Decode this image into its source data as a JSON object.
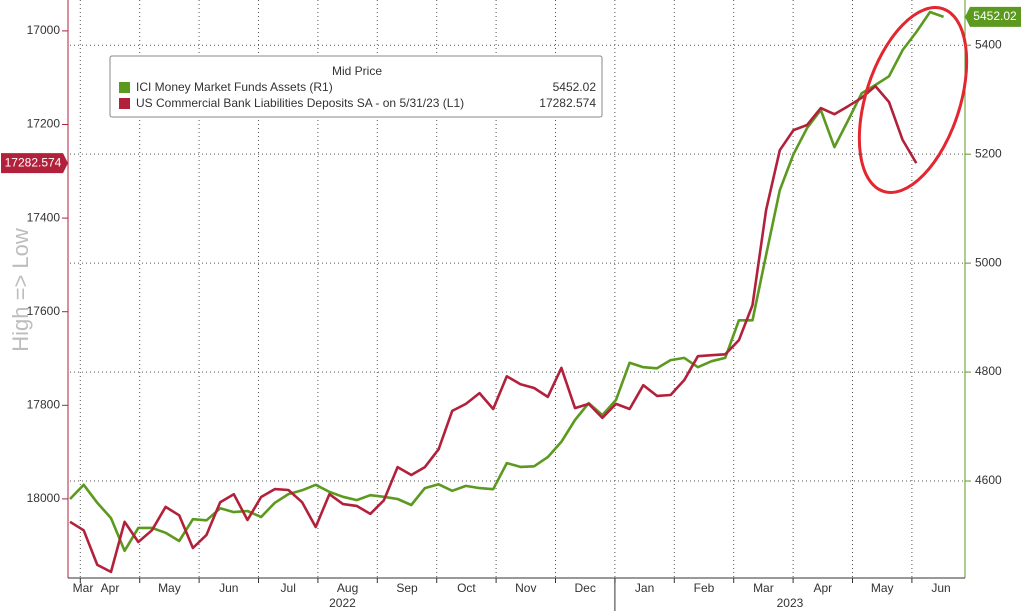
{
  "chart_data": {
    "type": "line",
    "legend_title": "Mid Price",
    "y_axis_label": "High => Low",
    "months": [
      "Mar",
      "Apr",
      "May",
      "Jun",
      "Jul",
      "Aug",
      "Sep",
      "Oct",
      "Nov",
      "Dec",
      "Jan",
      "Feb",
      "Mar",
      "Apr",
      "May",
      "Jun"
    ],
    "years": [
      "2022",
      "2023"
    ],
    "ylim": [
      18169,
      16934
    ],
    "yticks": [
      17000,
      17200,
      17400,
      17600,
      17800,
      18000
    ],
    "y2lim": [
      4422,
      5483
    ],
    "y2ticks": [
      4600,
      4800,
      5000,
      5200,
      5400
    ],
    "grid": true,
    "series": [
      {
        "name": "ICI Money Market Funds Assets  (R1)",
        "color": "#5b9a1f",
        "axis": "y2",
        "values": [
          4567,
          4593,
          4560,
          4532,
          4472,
          4514,
          4514,
          4505,
          4490,
          4530,
          4528,
          4550,
          4543,
          4545,
          4534,
          4560,
          4576,
          4583,
          4593,
          4580,
          4571,
          4565,
          4574,
          4571,
          4567,
          4556,
          4587,
          4594,
          4582,
          4591,
          4587,
          4585,
          4633,
          4626,
          4627,
          4644,
          4672,
          4712,
          4743,
          4721,
          4749,
          4817,
          4809,
          4807,
          4822,
          4826,
          4809,
          4820,
          4826,
          4895,
          4895,
          5015,
          5134,
          5200,
          5248,
          5281,
          5213,
          5262,
          5312,
          5327,
          5343,
          5391,
          5424,
          5461,
          5452.02
        ]
      },
      {
        "name": "US Commercial Bank Liabilities Deposits SA -   on 5/31/23   (L1)",
        "color": "#b2213b",
        "axis": "y",
        "values": [
          18049,
          18067,
          18141,
          18156,
          18049,
          18092,
          18067,
          18017,
          18035,
          18105,
          18077,
          18007,
          17990,
          18045,
          17996,
          17979,
          17981,
          18007,
          18060,
          17990,
          18011,
          18015,
          18032,
          18003,
          17932,
          17949,
          17932,
          17894,
          17812,
          17797,
          17774,
          17808,
          17738,
          17755,
          17763,
          17782,
          17720,
          17806,
          17797,
          17827,
          17797,
          17808,
          17757,
          17780,
          17778,
          17746,
          17695,
          17693,
          17691,
          17661,
          17586,
          17383,
          17255,
          17212,
          17201,
          17165,
          17178,
          17161,
          17143,
          17118,
          17152,
          17233,
          17282.574,
          null,
          null
        ]
      }
    ]
  }
}
